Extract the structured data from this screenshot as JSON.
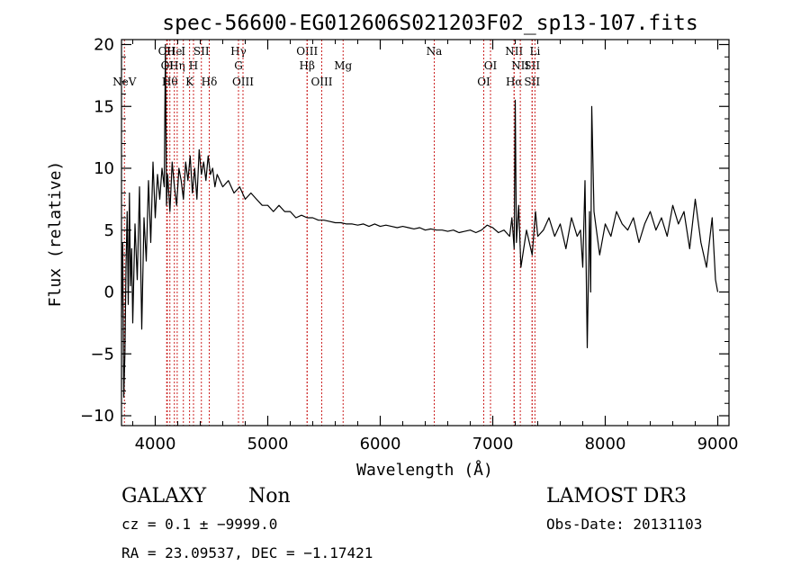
{
  "chart_data": {
    "type": "line",
    "title": "spec-56600-EG012606S021203F02_sp13-107.fits",
    "xlabel": "Wavelength (Å)",
    "ylabel": "Flux (relative)",
    "xlim": [
      3700,
      9100
    ],
    "ylim": [
      -10.8,
      20.4
    ],
    "x_ticks": [
      4000,
      5000,
      6000,
      7000,
      8000,
      9000
    ],
    "x_tick_labels": [
      "4000",
      "5000",
      "6000",
      "7000",
      "8000",
      "9000"
    ],
    "y_ticks": [
      -10,
      -5,
      0,
      5,
      10,
      15,
      20
    ],
    "y_tick_labels": [
      "−10",
      "−5",
      "0",
      "5",
      "10",
      "15",
      "20"
    ],
    "grid": false,
    "legend": "none",
    "line_color": "#000000",
    "marker_color": "#cc2222",
    "spectrum": {
      "x": [
        3700,
        3710,
        3720,
        3730,
        3740,
        3750,
        3760,
        3770,
        3780,
        3790,
        3800,
        3820,
        3840,
        3860,
        3880,
        3900,
        3920,
        3940,
        3960,
        3980,
        4000,
        4020,
        4040,
        4060,
        4080,
        4090,
        4100,
        4110,
        4130,
        4150,
        4170,
        4190,
        4210,
        4230,
        4250,
        4270,
        4290,
        4310,
        4330,
        4350,
        4370,
        4390,
        4410,
        4430,
        4450,
        4470,
        4490,
        4510,
        4530,
        4550,
        4600,
        4650,
        4700,
        4750,
        4800,
        4850,
        4900,
        4950,
        5000,
        5050,
        5100,
        5150,
        5200,
        5250,
        5300,
        5350,
        5400,
        5450,
        5500,
        5550,
        5600,
        5650,
        5700,
        5750,
        5800,
        5850,
        5900,
        5950,
        6000,
        6050,
        6100,
        6150,
        6200,
        6250,
        6300,
        6350,
        6400,
        6450,
        6500,
        6550,
        6600,
        6650,
        6700,
        6750,
        6800,
        6850,
        6900,
        6950,
        7000,
        7050,
        7100,
        7150,
        7170,
        7190,
        7200,
        7210,
        7230,
        7250,
        7300,
        7350,
        7380,
        7400,
        7450,
        7500,
        7550,
        7600,
        7650,
        7700,
        7750,
        7780,
        7800,
        7820,
        7840,
        7860,
        7870,
        7880,
        7900,
        7950,
        8000,
        8050,
        8100,
        8150,
        8200,
        8250,
        8300,
        8350,
        8400,
        8450,
        8500,
        8550,
        8600,
        8650,
        8700,
        8750,
        8800,
        8850,
        8900,
        8950,
        8980,
        9000
      ],
      "y": [
        -2.0,
        4.0,
        -8.5,
        -5.0,
        2.0,
        6.5,
        -1.0,
        8.0,
        0.5,
        3.5,
        -2.5,
        5.5,
        1.0,
        8.5,
        -3.0,
        6.0,
        2.5,
        9.0,
        4.0,
        10.5,
        6.0,
        9.5,
        7.5,
        10.0,
        8.5,
        20.0,
        7.0,
        9.5,
        6.5,
        10.5,
        8.5,
        7.0,
        10.0,
        9.0,
        7.5,
        10.5,
        9.0,
        11.0,
        8.0,
        10.0,
        7.5,
        11.5,
        9.5,
        10.5,
        9.0,
        11.0,
        9.5,
        10.0,
        8.5,
        9.5,
        8.5,
        9.0,
        8.0,
        8.5,
        7.5,
        8.0,
        7.5,
        7.0,
        7.0,
        6.5,
        7.0,
        6.5,
        6.5,
        6.0,
        6.2,
        6.0,
        6.0,
        5.8,
        5.8,
        5.7,
        5.6,
        5.6,
        5.5,
        5.5,
        5.4,
        5.5,
        5.3,
        5.5,
        5.3,
        5.4,
        5.3,
        5.2,
        5.3,
        5.2,
        5.1,
        5.2,
        5.0,
        5.1,
        5.0,
        5.0,
        4.9,
        5.0,
        4.8,
        4.9,
        5.0,
        4.8,
        5.0,
        5.4,
        5.2,
        4.8,
        5.0,
        4.5,
        6.0,
        3.5,
        15.5,
        4.0,
        7.0,
        2.0,
        5.0,
        3.0,
        6.5,
        4.5,
        5.0,
        6.0,
        4.5,
        5.5,
        3.5,
        6.0,
        4.5,
        5.0,
        2.0,
        9.0,
        -4.5,
        6.5,
        0.0,
        15.0,
        6.5,
        3.0,
        5.5,
        4.5,
        6.5,
        5.5,
        5.0,
        6.0,
        4.0,
        5.5,
        6.5,
        5.0,
        6.0,
        4.5,
        7.0,
        5.5,
        6.5,
        3.5,
        7.5,
        4.0,
        2.0,
        6.0,
        1.0,
        0.0
      ]
    },
    "line_markers": [
      {
        "lambda": 3726,
        "label": "NeV",
        "row": 3
      },
      {
        "lambda": 4102,
        "label": "OII",
        "row": 1
      },
      {
        "lambda": 4107,
        "label": "OI",
        "row": 2
      },
      {
        "lambda": 4130,
        "label": "Hθ",
        "row": 3
      },
      {
        "lambda": 4170,
        "label": "He",
        "row": 1
      },
      {
        "lambda": 4195,
        "label": "Hη",
        "row": 2
      },
      {
        "lambda": 4250,
        "label": "I",
        "row": 1
      },
      {
        "lambda": 4305,
        "label": "K",
        "row": 3
      },
      {
        "lambda": 4340,
        "label": "H",
        "row": 2
      },
      {
        "lambda": 4410,
        "label": "SII",
        "row": 1
      },
      {
        "lambda": 4480,
        "label": "Hδ",
        "row": 3
      },
      {
        "lambda": 4740,
        "label": "Hγ",
        "row": 1
      },
      {
        "lambda": 4740,
        "label": "G",
        "row": 2
      },
      {
        "lambda": 4780,
        "label": "OIII",
        "row": 3
      },
      {
        "lambda": 5350,
        "label": "OIII",
        "row": 1
      },
      {
        "lambda": 5350,
        "label": "Hβ",
        "row": 2
      },
      {
        "lambda": 5480,
        "label": "OIII",
        "row": 3
      },
      {
        "lambda": 5670,
        "label": "Mg",
        "row": 2
      },
      {
        "lambda": 6480,
        "label": "Na",
        "row": 1
      },
      {
        "lambda": 6920,
        "label": "OI",
        "row": 3
      },
      {
        "lambda": 6980,
        "label": "OI",
        "row": 2
      },
      {
        "lambda": 7190,
        "label": "NII",
        "row": 1
      },
      {
        "lambda": 7190,
        "label": "Hα",
        "row": 3
      },
      {
        "lambda": 7245,
        "label": "NII",
        "row": 2
      },
      {
        "lambda": 7350,
        "label": "SII",
        "row": 2
      },
      {
        "lambda": 7350,
        "label": "SII",
        "row": 3
      },
      {
        "lambda": 7375,
        "label": "Li",
        "row": 1
      }
    ]
  },
  "info": {
    "class_label": "GALAXY",
    "subclass_label": "Non",
    "cz_line": "cz = 0.1 ± −9999.0",
    "radec_line": "RA =  23.09537, DEC =  −1.17421",
    "survey_label": "LAMOST DR3",
    "obs_date_line": "Obs-Date: 20131103"
  }
}
